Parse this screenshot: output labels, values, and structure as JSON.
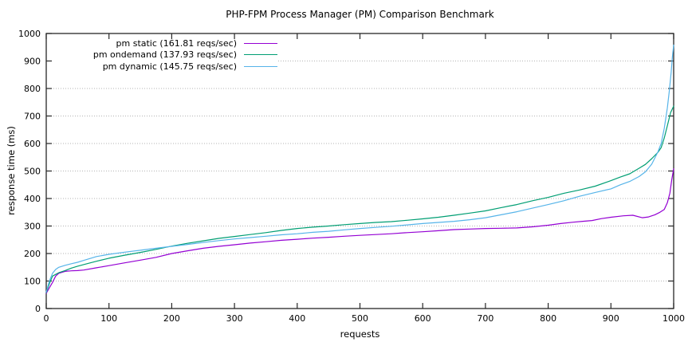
{
  "chart_data": {
    "type": "line",
    "title": "PHP-FPM Process Manager (PM) Comparison Benchmark",
    "xlabel": "requests",
    "ylabel": "response time (ms)",
    "xlim": [
      0,
      1000
    ],
    "ylim": [
      0,
      1000
    ],
    "xticks": [
      0,
      100,
      200,
      300,
      400,
      500,
      600,
      700,
      800,
      900,
      1000
    ],
    "yticks": [
      0,
      100,
      200,
      300,
      400,
      500,
      600,
      700,
      800,
      900,
      1000
    ],
    "grid": "horizontal-dotted-only",
    "legend_position": "top-left-inside-no-box",
    "colors": {
      "background": "#ffffff",
      "frame": "#262626",
      "grid": "#b3b3b3",
      "text": "#000000"
    },
    "series": [
      {
        "id": "pm-static",
        "label": "pm static (161.81 reqs/sec)",
        "throughput_reqs_per_sec": 161.81,
        "color": "#9400d3",
        "points": [
          [
            0,
            55
          ],
          [
            5,
            75
          ],
          [
            10,
            95
          ],
          [
            15,
            118
          ],
          [
            20,
            128
          ],
          [
            30,
            135
          ],
          [
            40,
            137
          ],
          [
            50,
            138
          ],
          [
            60,
            140
          ],
          [
            80,
            148
          ],
          [
            100,
            156
          ],
          [
            125,
            166
          ],
          [
            150,
            176
          ],
          [
            175,
            186
          ],
          [
            200,
            200
          ],
          [
            225,
            210
          ],
          [
            250,
            219
          ],
          [
            275,
            226
          ],
          [
            300,
            232
          ],
          [
            325,
            238
          ],
          [
            350,
            243
          ],
          [
            375,
            248
          ],
          [
            400,
            252
          ],
          [
            425,
            256
          ],
          [
            450,
            259
          ],
          [
            475,
            263
          ],
          [
            500,
            266
          ],
          [
            525,
            269
          ],
          [
            550,
            272
          ],
          [
            575,
            276
          ],
          [
            600,
            279
          ],
          [
            625,
            283
          ],
          [
            650,
            287
          ],
          [
            675,
            289
          ],
          [
            700,
            291
          ],
          [
            725,
            292
          ],
          [
            750,
            293
          ],
          [
            775,
            297
          ],
          [
            800,
            303
          ],
          [
            820,
            309
          ],
          [
            840,
            314
          ],
          [
            855,
            317
          ],
          [
            870,
            320
          ],
          [
            885,
            327
          ],
          [
            900,
            332
          ],
          [
            920,
            337
          ],
          [
            935,
            339
          ],
          [
            950,
            330
          ],
          [
            960,
            333
          ],
          [
            970,
            341
          ],
          [
            978,
            350
          ],
          [
            985,
            360
          ],
          [
            990,
            385
          ],
          [
            994,
            420
          ],
          [
            997,
            468
          ],
          [
            1000,
            508
          ]
        ]
      },
      {
        "id": "pm-ondemand",
        "label": "pm ondemand (137.93 reqs/sec)",
        "throughput_reqs_per_sec": 137.93,
        "color": "#009e73",
        "points": [
          [
            0,
            58
          ],
          [
            5,
            90
          ],
          [
            10,
            118
          ],
          [
            15,
            124
          ],
          [
            20,
            130
          ],
          [
            30,
            138
          ],
          [
            40,
            147
          ],
          [
            50,
            154
          ],
          [
            60,
            160
          ],
          [
            80,
            172
          ],
          [
            100,
            183
          ],
          [
            125,
            194
          ],
          [
            150,
            204
          ],
          [
            175,
            215
          ],
          [
            200,
            227
          ],
          [
            225,
            237
          ],
          [
            250,
            246
          ],
          [
            275,
            255
          ],
          [
            300,
            262
          ],
          [
            325,
            269
          ],
          [
            350,
            276
          ],
          [
            375,
            284
          ],
          [
            400,
            291
          ],
          [
            425,
            296
          ],
          [
            450,
            300
          ],
          [
            475,
            305
          ],
          [
            500,
            309
          ],
          [
            525,
            313
          ],
          [
            550,
            316
          ],
          [
            575,
            321
          ],
          [
            600,
            326
          ],
          [
            625,
            332
          ],
          [
            650,
            339
          ],
          [
            675,
            347
          ],
          [
            700,
            355
          ],
          [
            725,
            367
          ],
          [
            750,
            378
          ],
          [
            775,
            392
          ],
          [
            800,
            404
          ],
          [
            825,
            419
          ],
          [
            850,
            431
          ],
          [
            875,
            445
          ],
          [
            900,
            465
          ],
          [
            915,
            478
          ],
          [
            930,
            490
          ],
          [
            945,
            510
          ],
          [
            955,
            524
          ],
          [
            965,
            545
          ],
          [
            975,
            568
          ],
          [
            980,
            585
          ],
          [
            985,
            620
          ],
          [
            990,
            665
          ],
          [
            995,
            712
          ],
          [
            1000,
            736
          ]
        ]
      },
      {
        "id": "pm-dynamic",
        "label": "pm dynamic (145.75 reqs/sec)",
        "throughput_reqs_per_sec": 145.75,
        "color": "#56b4e9",
        "points": [
          [
            0,
            60
          ],
          [
            5,
            100
          ],
          [
            10,
            128
          ],
          [
            15,
            142
          ],
          [
            20,
            150
          ],
          [
            30,
            157
          ],
          [
            40,
            163
          ],
          [
            50,
            168
          ],
          [
            60,
            175
          ],
          [
            80,
            189
          ],
          [
            100,
            197
          ],
          [
            125,
            205
          ],
          [
            150,
            212
          ],
          [
            175,
            219
          ],
          [
            200,
            226
          ],
          [
            225,
            233
          ],
          [
            250,
            240
          ],
          [
            275,
            247
          ],
          [
            300,
            253
          ],
          [
            325,
            258
          ],
          [
            350,
            263
          ],
          [
            375,
            268
          ],
          [
            400,
            272
          ],
          [
            425,
            277
          ],
          [
            450,
            281
          ],
          [
            475,
            286
          ],
          [
            500,
            291
          ],
          [
            525,
            295
          ],
          [
            550,
            299
          ],
          [
            575,
            304
          ],
          [
            600,
            309
          ],
          [
            625,
            313
          ],
          [
            650,
            317
          ],
          [
            675,
            323
          ],
          [
            700,
            330
          ],
          [
            725,
            341
          ],
          [
            750,
            352
          ],
          [
            775,
            365
          ],
          [
            800,
            378
          ],
          [
            825,
            392
          ],
          [
            850,
            408
          ],
          [
            875,
            422
          ],
          [
            900,
            435
          ],
          [
            915,
            450
          ],
          [
            930,
            462
          ],
          [
            945,
            480
          ],
          [
            955,
            497
          ],
          [
            965,
            525
          ],
          [
            975,
            570
          ],
          [
            980,
            600
          ],
          [
            985,
            655
          ],
          [
            990,
            730
          ],
          [
            993,
            790
          ],
          [
            996,
            860
          ],
          [
            998,
            915
          ],
          [
            1000,
            958
          ]
        ]
      }
    ]
  }
}
